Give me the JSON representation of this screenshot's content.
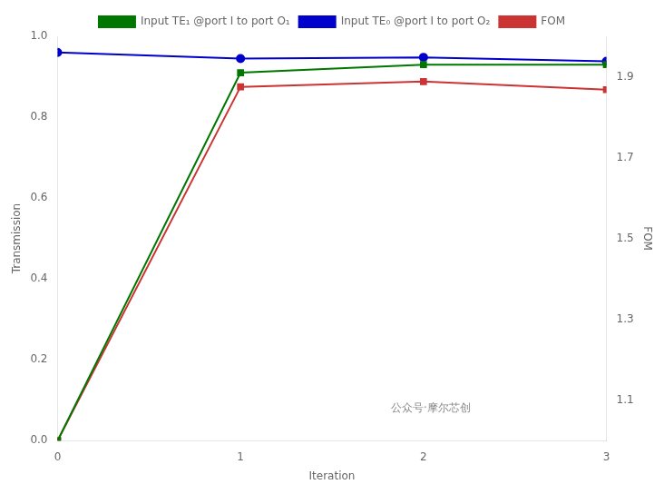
{
  "chart_data": {
    "type": "line",
    "xlabel": "Iteration",
    "ylabel": "Transmission",
    "y2label": "FOM",
    "x": [
      0,
      1,
      2,
      3
    ],
    "xlim": [
      0,
      3
    ],
    "xticks": [
      0,
      1,
      2,
      3
    ],
    "ylim": [
      0.0,
      1.0
    ],
    "yticks": [
      {
        "value": 0,
        "label": "0.0"
      },
      0.2,
      0.4,
      0.6,
      0.8,
      {
        "value": 1,
        "label": "1.0"
      }
    ],
    "y2lim": [
      1.0,
      2.0
    ],
    "y2ticks": [
      1.1,
      1.3,
      1.5,
      1.7,
      1.9
    ],
    "grid": false,
    "annotations": [
      "公众号·摩尔芯创"
    ],
    "series": [
      {
        "name": "Input TE₁ @port I to port O₁",
        "color": "#007700",
        "marker": "square",
        "values": [
          0.0,
          0.91,
          0.93,
          0.93
        ]
      },
      {
        "name": "Input TE₀ @port I to port O₂",
        "color": "#0000CC",
        "marker": "circle",
        "values": [
          0.96,
          0.945,
          0.948,
          0.938
        ]
      },
      {
        "name": "FOM",
        "color": "#CC3333",
        "marker": "square",
        "axis": "y2",
        "values": [
          1.0,
          1.875,
          1.888,
          1.868
        ]
      }
    ]
  }
}
